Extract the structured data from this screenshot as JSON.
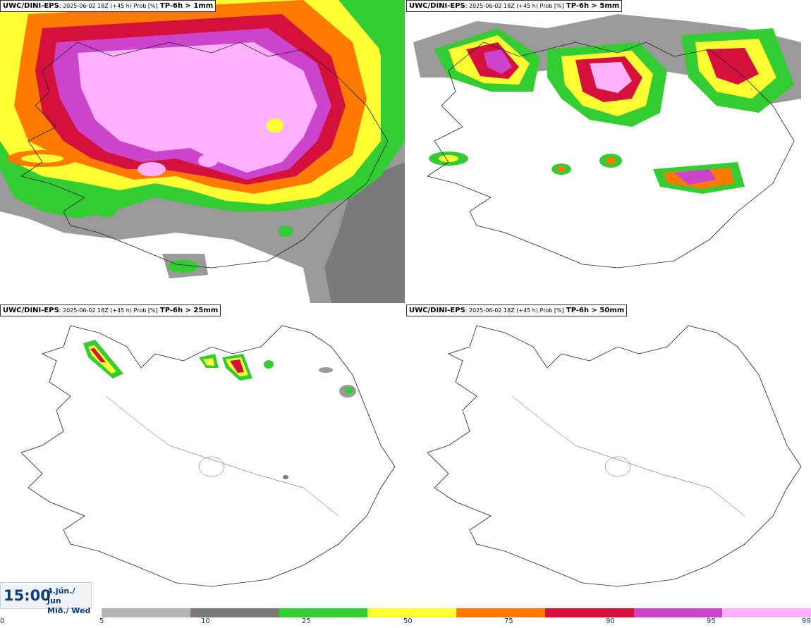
{
  "source_label": "UWC/DINI-EPS",
  "run_meta": ": 2025-06-02 18Z (+45 h) Prob [%]",
  "panels": [
    {
      "threshold": "TP-6h > 1mm"
    },
    {
      "threshold": "TP-6h > 5mm"
    },
    {
      "threshold": "TP-6h > 25mm"
    },
    {
      "threshold": "TP-6h > 50mm"
    }
  ],
  "valid_time": {
    "time": "15:00",
    "date_line1": "4.jún./ Jun",
    "date_line2": "Mið./ Wed"
  },
  "legend": {
    "ticks": [
      "0",
      "5",
      "10",
      "25",
      "50",
      "75",
      "90",
      "95",
      "99"
    ],
    "colors": [
      "#b4b4b4",
      "#7a7a7a",
      "#33cc33",
      "#ffff33",
      "#ff7a00",
      "#d4103c",
      "#cc44cc",
      "#ffb0ff"
    ]
  }
}
